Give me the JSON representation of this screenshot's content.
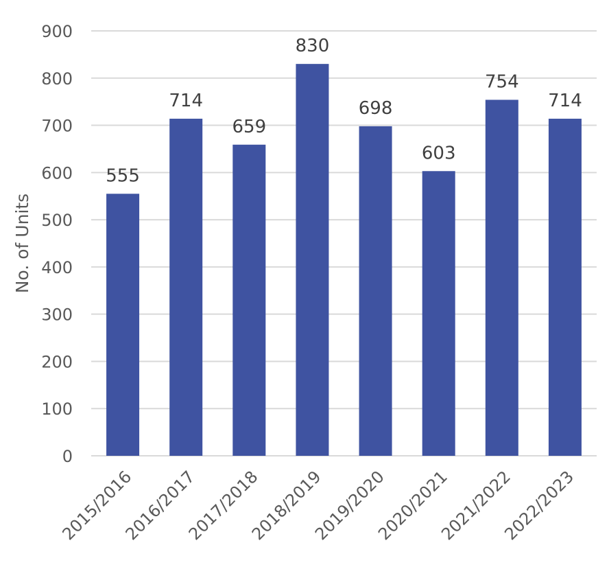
{
  "chart_data": {
    "type": "bar",
    "categories": [
      "2015/2016",
      "2016/2017",
      "2017/2018",
      "2018/2019",
      "2019/2020",
      "2020/2021",
      "2021/2022",
      "2022/2023"
    ],
    "values": [
      555,
      714,
      659,
      830,
      698,
      603,
      754,
      714
    ],
    "data_labels": [
      "555",
      "714",
      "659",
      "830",
      "698",
      "603",
      "754",
      "714"
    ],
    "title": "",
    "xlabel": "",
    "ylabel": "No. of Units",
    "ylim": [
      0,
      900
    ],
    "yticks": [
      0,
      100,
      200,
      300,
      400,
      500,
      600,
      700,
      800,
      900
    ],
    "ytick_labels": [
      "0",
      "100",
      "200",
      "300",
      "400",
      "500",
      "600",
      "700",
      "800",
      "900"
    ],
    "grid": true,
    "legend": "none",
    "bar_color": "#3f53a1"
  }
}
